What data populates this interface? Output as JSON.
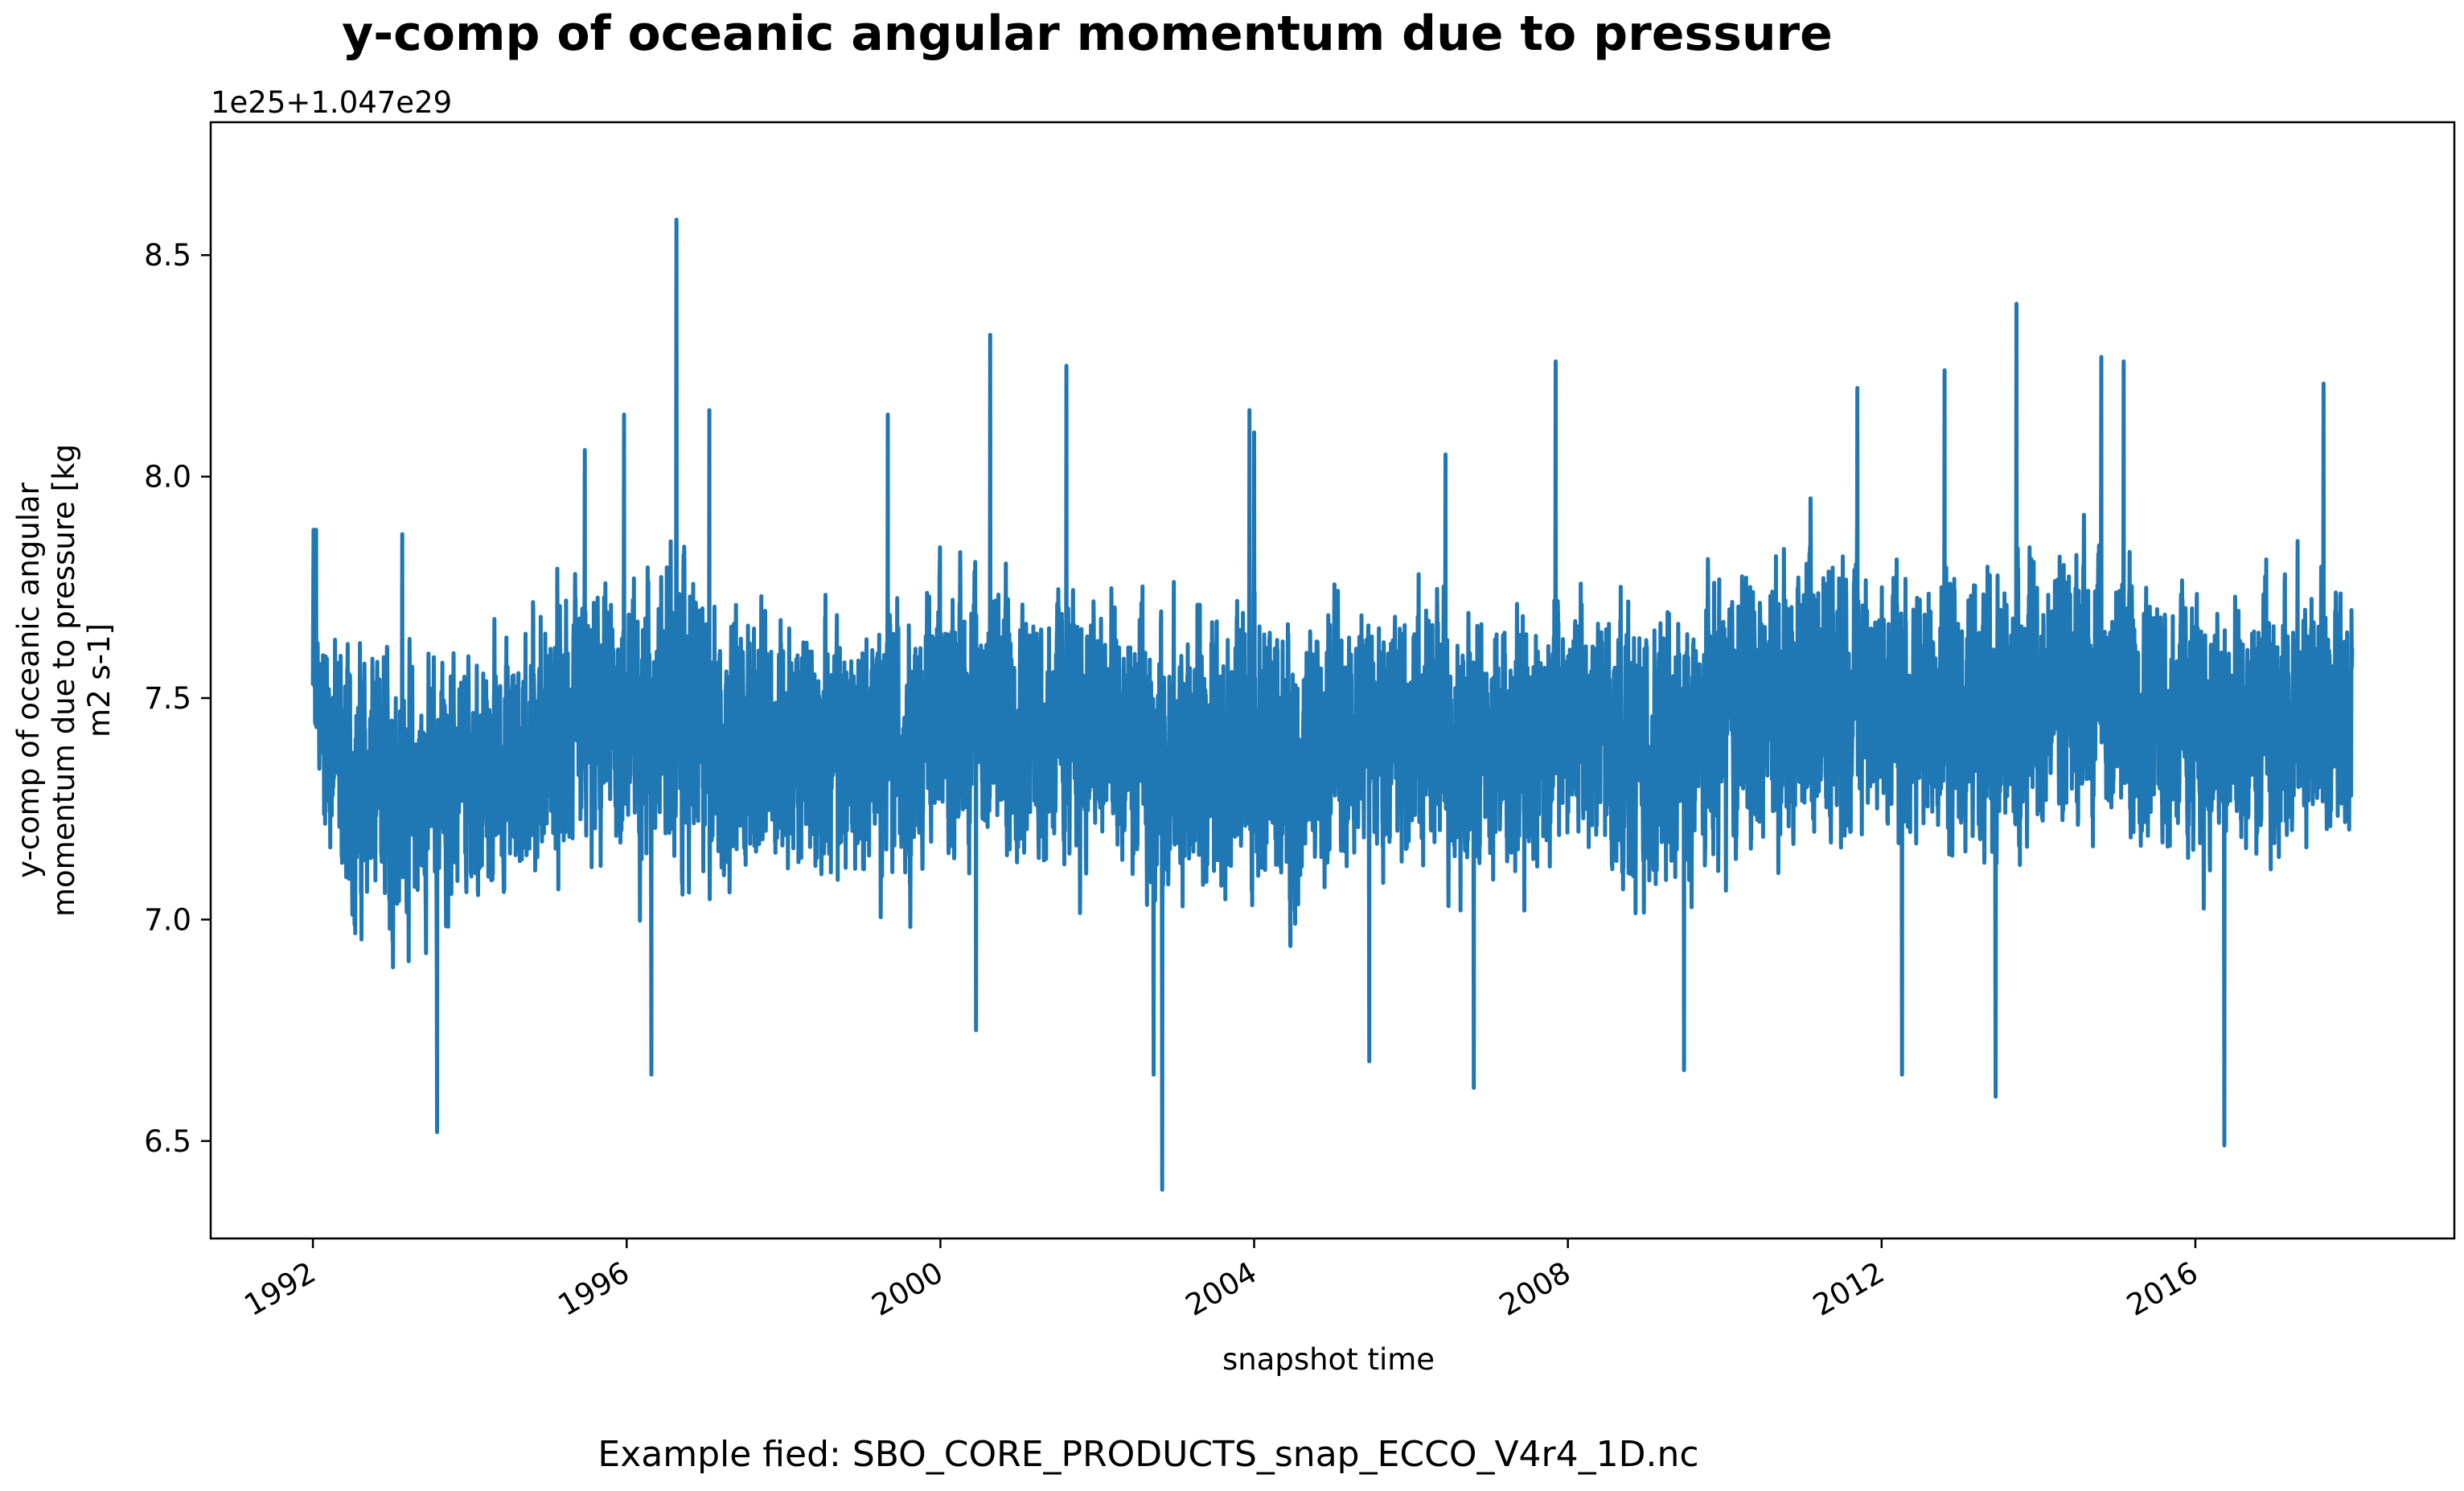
{
  "chart_data": {
    "type": "line",
    "title": "y-comp of oceanic angular momentum due to pressure",
    "xlabel": "snapshot time",
    "ylabel_lines": [
      "y-comp of oceanic angular",
      "momentum due to pressure [kg",
      "m2 s-1]"
    ],
    "offset_text": "1e25+1.047e29",
    "xlim": [
      "1990-09-12",
      "2019-04-21"
    ],
    "ylim": [
      6.28,
      8.8
    ],
    "yticks": [
      6.5,
      7.0,
      7.5,
      8.0,
      8.5
    ],
    "ytick_labels": [
      "6.5",
      "7.0",
      "7.5",
      "8.0",
      "8.5"
    ],
    "xticks": [
      "1992-01-01",
      "1996-01-01",
      "2000-01-01",
      "2004-01-01",
      "2008-01-01",
      "2012-01-01",
      "2016-01-01"
    ],
    "xtick_labels": [
      "1992",
      "1996",
      "2000",
      "2004",
      "2008",
      "2012",
      "2016"
    ],
    "grid": false,
    "legend": "none",
    "series": [
      {
        "color": "#1f77b4",
        "x_start": "1992-01-01",
        "x_end": "2017-12-31",
        "x_step_days": 1,
        "envelope": {
          "x": [
            "1992-01-01",
            "1992-07-01",
            "1993-01-01",
            "1993-07-01",
            "1994-01-01",
            "1994-07-01",
            "1995-01-01",
            "1995-07-01",
            "1996-01-01",
            "1996-07-01",
            "1997-01-01",
            "1997-07-01",
            "1998-01-01",
            "1998-07-01",
            "1999-01-01",
            "1999-07-01",
            "2000-01-01",
            "2000-07-01",
            "2001-01-01",
            "2001-07-01",
            "2002-01-01",
            "2002-07-01",
            "2003-01-01",
            "2003-07-01",
            "2004-01-01",
            "2004-07-01",
            "2005-01-01",
            "2005-07-01",
            "2006-01-01",
            "2006-07-01",
            "2007-01-01",
            "2007-07-01",
            "2008-01-01",
            "2008-07-01",
            "2009-01-01",
            "2009-07-01",
            "2010-01-01",
            "2010-07-01",
            "2011-01-01",
            "2011-07-01",
            "2012-01-01",
            "2012-07-01",
            "2013-01-01",
            "2013-07-01",
            "2014-01-01",
            "2014-07-01",
            "2015-01-01",
            "2015-07-01",
            "2016-01-01",
            "2016-07-01",
            "2017-01-01",
            "2017-07-01",
            "2017-12-31"
          ],
          "center": [
            7.52,
            7.3,
            7.28,
            7.3,
            7.3,
            7.35,
            7.4,
            7.42,
            7.45,
            7.48,
            7.42,
            7.4,
            7.4,
            7.38,
            7.38,
            7.4,
            7.45,
            7.48,
            7.45,
            7.42,
            7.42,
            7.38,
            7.35,
            7.4,
            7.38,
            7.35,
            7.4,
            7.45,
            7.45,
            7.4,
            7.38,
            7.42,
            7.45,
            7.4,
            7.35,
            7.38,
            7.45,
            7.48,
            7.5,
            7.52,
            7.5,
            7.48,
            7.45,
            7.45,
            7.52,
            7.55,
            7.5,
            7.48,
            7.42,
            7.4,
            7.45,
            7.48,
            7.5
          ],
          "amplitude": [
            0.22,
            0.3,
            0.3,
            0.28,
            0.26,
            0.28,
            0.3,
            0.3,
            0.32,
            0.34,
            0.32,
            0.28,
            0.28,
            0.3,
            0.28,
            0.3,
            0.3,
            0.32,
            0.3,
            0.3,
            0.32,
            0.3,
            0.32,
            0.3,
            0.3,
            0.32,
            0.3,
            0.3,
            0.28,
            0.3,
            0.3,
            0.3,
            0.3,
            0.3,
            0.3,
            0.3,
            0.3,
            0.3,
            0.32,
            0.32,
            0.3,
            0.3,
            0.3,
            0.32,
            0.32,
            0.32,
            0.3,
            0.3,
            0.3,
            0.3,
            0.3,
            0.3,
            0.25
          ],
          "noise_period_days": 18
        },
        "peaks": [
          {
            "x": "1992-01-04",
            "y": 7.88
          },
          {
            "x": "1992-01-16",
            "y": 7.88
          },
          {
            "x": "1993-02-20",
            "y": 7.87
          },
          {
            "x": "1993-08-01",
            "y": 6.52
          },
          {
            "x": "1995-06-20",
            "y": 8.06
          },
          {
            "x": "1995-12-20",
            "y": 8.14
          },
          {
            "x": "1996-04-25",
            "y": 6.65
          },
          {
            "x": "1996-08-20",
            "y": 8.58
          },
          {
            "x": "1997-01-20",
            "y": 8.15
          },
          {
            "x": "1999-05-01",
            "y": 8.14
          },
          {
            "x": "2000-06-15",
            "y": 6.75
          },
          {
            "x": "2000-08-20",
            "y": 8.32
          },
          {
            "x": "2001-08-10",
            "y": 8.25
          },
          {
            "x": "2002-09-20",
            "y": 6.65
          },
          {
            "x": "2002-10-30",
            "y": 6.39
          },
          {
            "x": "2003-12-10",
            "y": 8.15
          },
          {
            "x": "2004-01-01",
            "y": 8.1
          },
          {
            "x": "2005-06-20",
            "y": 6.68
          },
          {
            "x": "2006-06-10",
            "y": 8.05
          },
          {
            "x": "2006-10-20",
            "y": 6.62
          },
          {
            "x": "2007-11-05",
            "y": 8.26
          },
          {
            "x": "2009-06-25",
            "y": 6.66
          },
          {
            "x": "2011-09-10",
            "y": 8.2
          },
          {
            "x": "2012-04-05",
            "y": 6.65
          },
          {
            "x": "2012-10-20",
            "y": 8.24
          },
          {
            "x": "2013-06-15",
            "y": 6.6
          },
          {
            "x": "2013-09-20",
            "y": 8.39
          },
          {
            "x": "2014-10-20",
            "y": 8.27
          },
          {
            "x": "2015-02-01",
            "y": 8.26
          },
          {
            "x": "2016-05-15",
            "y": 6.49
          },
          {
            "x": "2017-08-20",
            "y": 8.21
          }
        ]
      }
    ]
  },
  "caption": "Example fied: SBO_CORE_PRODUCTS_snap_ECCO_V4r4_1D.nc"
}
